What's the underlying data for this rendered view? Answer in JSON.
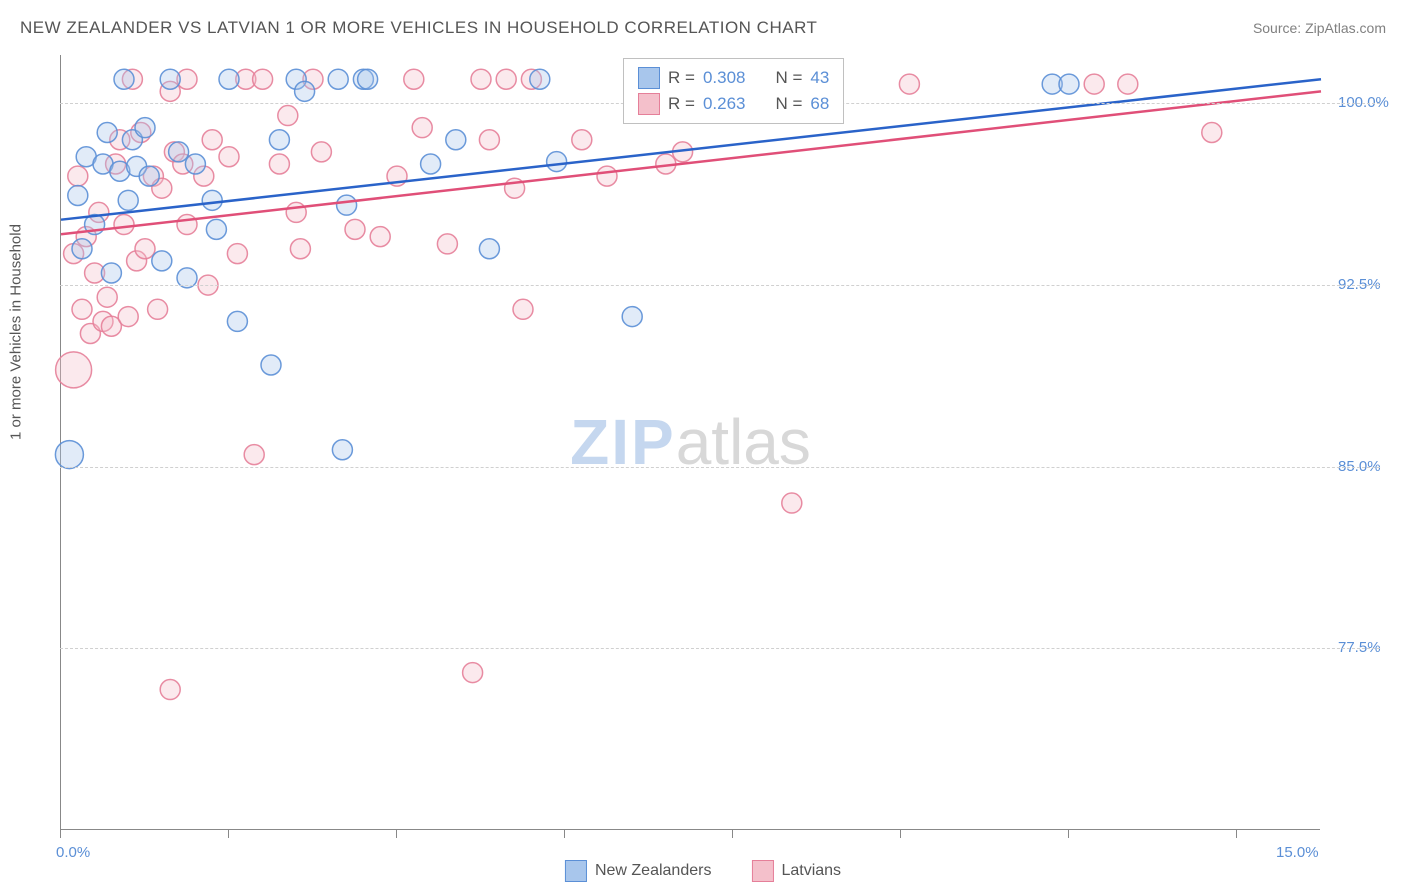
{
  "title": "NEW ZEALANDER VS LATVIAN 1 OR MORE VEHICLES IN HOUSEHOLD CORRELATION CHART",
  "source": "Source: ZipAtlas.com",
  "ylabel": "1 or more Vehicles in Household",
  "watermark": {
    "zip": "ZIP",
    "atlas": "atlas"
  },
  "chart": {
    "type": "scatter",
    "background_color": "#ffffff",
    "grid_color": "#d0d0d0",
    "axis_color": "#888888",
    "xlim": [
      0,
      15
    ],
    "ylim": [
      70,
      102
    ],
    "xtick_positions": [
      0,
      2,
      4,
      6,
      8,
      10,
      12,
      14
    ],
    "xtick_labels": {
      "0": "0.0%",
      "15": "15.0%"
    },
    "ytick_positions": [
      77.5,
      85.0,
      92.5,
      100.0
    ],
    "ytick_labels": [
      "77.5%",
      "85.0%",
      "92.5%",
      "100.0%"
    ],
    "tick_label_color": "#5b8fd6",
    "tick_label_fontsize": 15,
    "title_color": "#555555",
    "title_fontsize": 17,
    "point_radius_default": 10,
    "point_stroke_opacity": 0.9,
    "point_fill_opacity": 0.35
  },
  "series": {
    "nz": {
      "label": "New Zealanders",
      "color_fill": "#a8c6ec",
      "color_stroke": "#5b8fd6",
      "regression": {
        "x1": 0,
        "y1": 95.2,
        "x2": 15,
        "y2": 101.0,
        "color": "#2a63c9",
        "width": 2.5
      },
      "r": "0.308",
      "n": "43",
      "points": [
        {
          "x": 0.1,
          "y": 85.5,
          "r": 14
        },
        {
          "x": 0.2,
          "y": 96.2
        },
        {
          "x": 0.25,
          "y": 94.0
        },
        {
          "x": 0.3,
          "y": 97.8
        },
        {
          "x": 0.4,
          "y": 95.0
        },
        {
          "x": 0.5,
          "y": 97.5
        },
        {
          "x": 0.55,
          "y": 98.8
        },
        {
          "x": 0.6,
          "y": 93.0
        },
        {
          "x": 0.7,
          "y": 97.2
        },
        {
          "x": 0.75,
          "y": 101.0
        },
        {
          "x": 0.8,
          "y": 96.0
        },
        {
          "x": 0.85,
          "y": 98.5
        },
        {
          "x": 0.9,
          "y": 97.4
        },
        {
          "x": 1.0,
          "y": 99.0
        },
        {
          "x": 1.05,
          "y": 97.0
        },
        {
          "x": 1.2,
          "y": 93.5
        },
        {
          "x": 1.3,
          "y": 101.0
        },
        {
          "x": 1.4,
          "y": 98.0
        },
        {
          "x": 1.5,
          "y": 92.8
        },
        {
          "x": 1.6,
          "y": 97.5
        },
        {
          "x": 1.8,
          "y": 96.0
        },
        {
          "x": 1.85,
          "y": 94.8
        },
        {
          "x": 2.0,
          "y": 101.0
        },
        {
          "x": 2.1,
          "y": 91.0
        },
        {
          "x": 2.5,
          "y": 89.2
        },
        {
          "x": 2.6,
          "y": 98.5
        },
        {
          "x": 2.8,
          "y": 101.0
        },
        {
          "x": 2.9,
          "y": 100.5
        },
        {
          "x": 3.3,
          "y": 101.0
        },
        {
          "x": 3.35,
          "y": 85.7
        },
        {
          "x": 3.4,
          "y": 95.8
        },
        {
          "x": 3.6,
          "y": 101.0
        },
        {
          "x": 3.65,
          "y": 101.0
        },
        {
          "x": 4.4,
          "y": 97.5
        },
        {
          "x": 4.7,
          "y": 98.5
        },
        {
          "x": 5.1,
          "y": 94.0
        },
        {
          "x": 5.7,
          "y": 101.0
        },
        {
          "x": 5.9,
          "y": 97.6
        },
        {
          "x": 6.8,
          "y": 91.2
        },
        {
          "x": 7.0,
          "y": 101.0
        },
        {
          "x": 7.5,
          "y": 101.0
        },
        {
          "x": 11.8,
          "y": 100.8
        },
        {
          "x": 12.0,
          "y": 100.8
        }
      ]
    },
    "lv": {
      "label": "Latvians",
      "color_fill": "#f4c0cb",
      "color_stroke": "#e57f99",
      "regression": {
        "x1": 0,
        "y1": 94.6,
        "x2": 15,
        "y2": 100.5,
        "color": "#e04f78",
        "width": 2.5
      },
      "r": "0.263",
      "n": "68",
      "points": [
        {
          "x": 0.15,
          "y": 89.0,
          "r": 18
        },
        {
          "x": 0.15,
          "y": 93.8
        },
        {
          "x": 0.2,
          "y": 97.0
        },
        {
          "x": 0.25,
          "y": 91.5
        },
        {
          "x": 0.3,
          "y": 94.5
        },
        {
          "x": 0.35,
          "y": 90.5
        },
        {
          "x": 0.4,
          "y": 93.0
        },
        {
          "x": 0.45,
          "y": 95.5
        },
        {
          "x": 0.5,
          "y": 91.0
        },
        {
          "x": 0.55,
          "y": 92.0
        },
        {
          "x": 0.6,
          "y": 90.8
        },
        {
          "x": 0.65,
          "y": 97.5
        },
        {
          "x": 0.7,
          "y": 98.5
        },
        {
          "x": 0.75,
          "y": 95.0
        },
        {
          "x": 0.8,
          "y": 91.2
        },
        {
          "x": 0.85,
          "y": 101.0
        },
        {
          "x": 0.9,
          "y": 93.5
        },
        {
          "x": 0.95,
          "y": 98.8
        },
        {
          "x": 1.0,
          "y": 94.0
        },
        {
          "x": 1.1,
          "y": 97.0
        },
        {
          "x": 1.15,
          "y": 91.5
        },
        {
          "x": 1.2,
          "y": 96.5
        },
        {
          "x": 1.3,
          "y": 100.5
        },
        {
          "x": 1.3,
          "y": 75.8
        },
        {
          "x": 1.35,
          "y": 98.0
        },
        {
          "x": 1.45,
          "y": 97.5
        },
        {
          "x": 1.5,
          "y": 95.0
        },
        {
          "x": 1.5,
          "y": 101.0
        },
        {
          "x": 1.7,
          "y": 97.0
        },
        {
          "x": 1.75,
          "y": 92.5
        },
        {
          "x": 1.8,
          "y": 98.5
        },
        {
          "x": 2.0,
          "y": 97.8
        },
        {
          "x": 2.1,
          "y": 93.8
        },
        {
          "x": 2.2,
          "y": 101.0
        },
        {
          "x": 2.3,
          "y": 85.5
        },
        {
          "x": 2.4,
          "y": 101.0
        },
        {
          "x": 2.6,
          "y": 97.5
        },
        {
          "x": 2.7,
          "y": 99.5
        },
        {
          "x": 2.8,
          "y": 95.5
        },
        {
          "x": 2.85,
          "y": 94.0
        },
        {
          "x": 3.0,
          "y": 101.0
        },
        {
          "x": 3.1,
          "y": 98.0
        },
        {
          "x": 3.5,
          "y": 94.8
        },
        {
          "x": 3.8,
          "y": 94.5
        },
        {
          "x": 4.0,
          "y": 97.0
        },
        {
          "x": 4.2,
          "y": 101.0
        },
        {
          "x": 4.3,
          "y": 99.0
        },
        {
          "x": 4.6,
          "y": 94.2
        },
        {
          "x": 4.9,
          "y": 76.5
        },
        {
          "x": 5.0,
          "y": 101.0
        },
        {
          "x": 5.1,
          "y": 98.5
        },
        {
          "x": 5.3,
          "y": 101.0
        },
        {
          "x": 5.4,
          "y": 96.5
        },
        {
          "x": 5.5,
          "y": 91.5
        },
        {
          "x": 5.6,
          "y": 101.0
        },
        {
          "x": 6.2,
          "y": 98.5
        },
        {
          "x": 6.5,
          "y": 97.0
        },
        {
          "x": 6.9,
          "y": 101.0
        },
        {
          "x": 7.2,
          "y": 97.5
        },
        {
          "x": 7.4,
          "y": 98.0
        },
        {
          "x": 8.0,
          "y": 101.0
        },
        {
          "x": 8.2,
          "y": 100.8
        },
        {
          "x": 8.7,
          "y": 83.5
        },
        {
          "x": 8.8,
          "y": 101.0
        },
        {
          "x": 10.1,
          "y": 100.8
        },
        {
          "x": 12.3,
          "y": 100.8
        },
        {
          "x": 12.7,
          "y": 100.8
        },
        {
          "x": 13.7,
          "y": 98.8
        }
      ]
    }
  },
  "legend_top": {
    "r_label": "R =",
    "n_label": "N ="
  },
  "legend_bottom": {
    "nz": "New Zealanders",
    "lv": "Latvians"
  }
}
